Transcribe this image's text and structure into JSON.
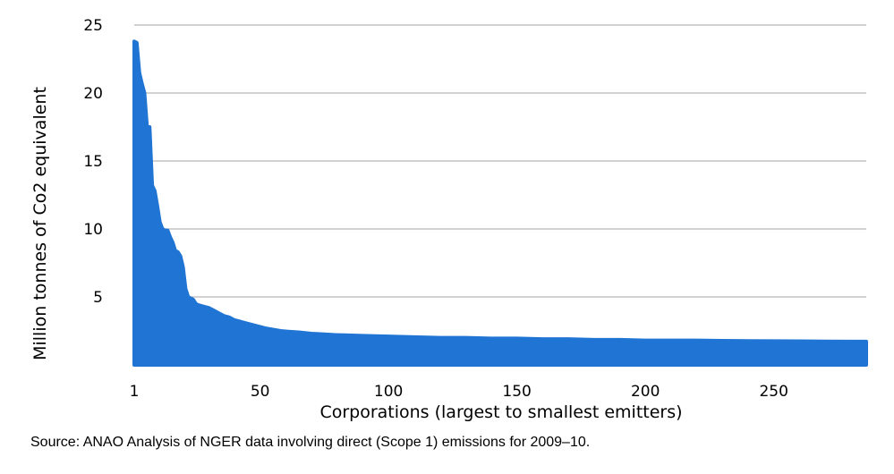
{
  "chart_data": {
    "type": "area",
    "title": "",
    "xlabel": "Corporations (largest to smallest emitters)",
    "ylabel": "Million tonnes of Co2 equivalent",
    "xlim": [
      1,
      286
    ],
    "ylim": [
      0,
      25
    ],
    "x_ticks": [
      1,
      50,
      100,
      150,
      200,
      250
    ],
    "y_ticks": [
      5,
      10,
      15,
      20,
      25
    ],
    "grid": "horizontal",
    "legend": "none",
    "color": "#1f74d4",
    "series": [
      {
        "x": [
          1,
          2,
          3,
          4,
          5,
          6,
          7,
          8,
          9,
          10,
          11,
          12,
          13,
          14,
          15,
          16,
          17,
          18,
          19,
          20,
          21,
          22,
          23,
          24,
          25,
          26,
          28,
          30,
          32,
          34,
          36,
          38,
          40,
          42,
          44,
          46,
          48,
          50,
          52,
          55,
          58,
          61,
          65,
          70,
          75,
          80,
          90,
          100,
          110,
          120,
          130,
          140,
          150,
          160,
          170,
          180,
          190,
          200,
          210,
          220,
          230,
          240,
          250,
          260,
          270,
          280,
          286
        ],
        "values": [
          23.8,
          23.7,
          21.5,
          20.7,
          20.0,
          17.5,
          17.5,
          13.2,
          12.8,
          11.7,
          10.5,
          10.0,
          9.9,
          9.9,
          9.4,
          9.0,
          8.4,
          8.3,
          8.0,
          7.2,
          5.6,
          5.0,
          4.9,
          4.8,
          4.5,
          4.4,
          4.3,
          4.2,
          4.0,
          3.8,
          3.6,
          3.5,
          3.3,
          3.2,
          3.1,
          3.0,
          2.9,
          2.8,
          2.7,
          2.6,
          2.5,
          2.45,
          2.4,
          2.3,
          2.25,
          2.2,
          2.15,
          2.1,
          2.05,
          2.0,
          2.0,
          1.95,
          1.95,
          1.9,
          1.9,
          1.85,
          1.85,
          1.8,
          1.8,
          1.8,
          1.78,
          1.76,
          1.75,
          1.74,
          1.73,
          1.72,
          1.72
        ]
      }
    ]
  },
  "source_note": "Source: ANAO Analysis of NGER data involving direct (Scope 1) emissions for 2009–10."
}
